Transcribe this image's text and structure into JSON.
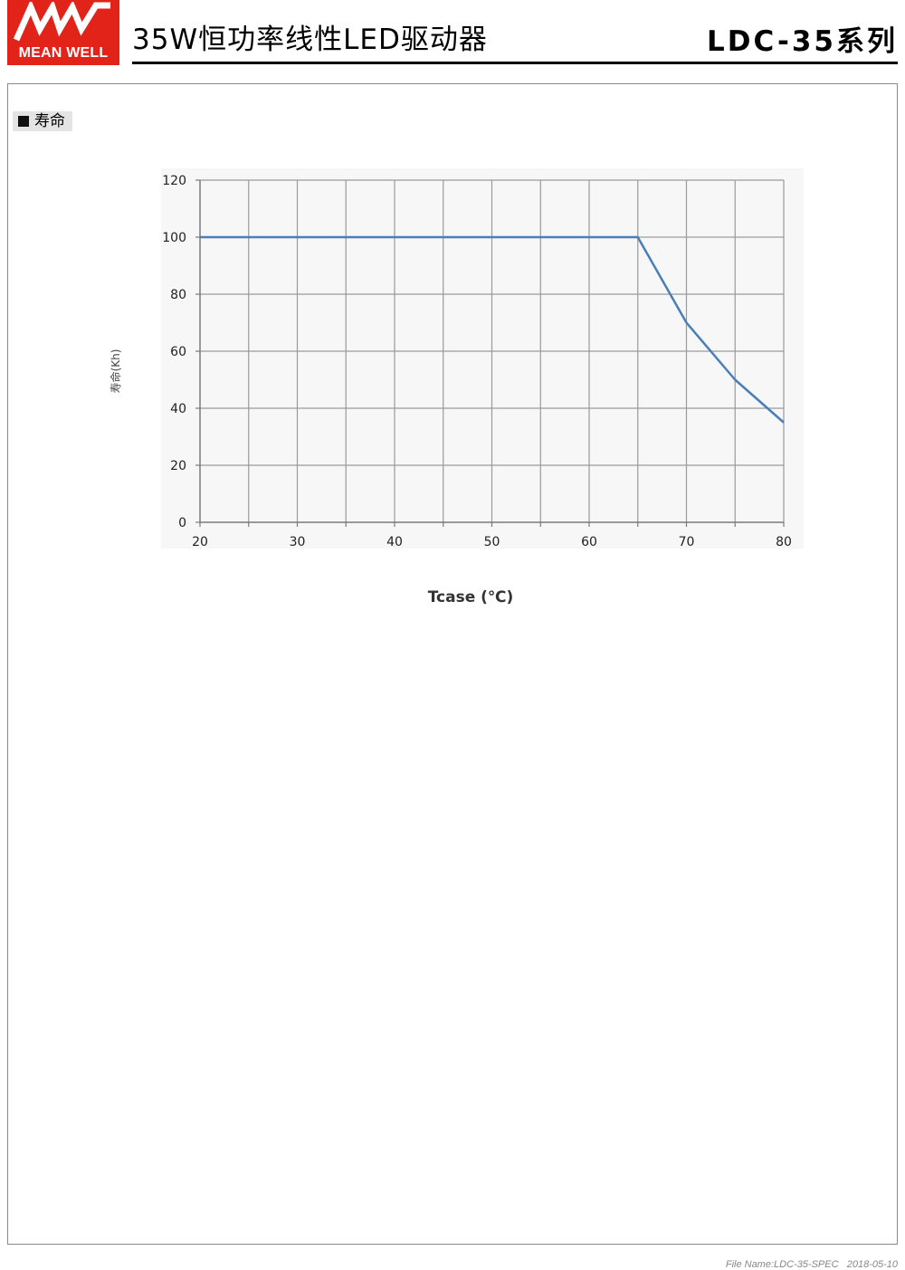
{
  "header": {
    "logo_text": "MEAN WELL",
    "doc_title": "35W恒功率线性LED驱动器",
    "series": "LDC-35系列",
    "brand_color": "#e2231a"
  },
  "section": {
    "label": "寿命"
  },
  "chart_data": {
    "type": "line",
    "title": "",
    "xlabel": "Tcase (℃)",
    "ylabel": "寿命(Kh)",
    "xlim": [
      20,
      80
    ],
    "ylim": [
      0,
      120
    ],
    "x_ticks": [
      20,
      30,
      40,
      50,
      60,
      70,
      80
    ],
    "y_ticks": [
      0,
      20,
      40,
      60,
      80,
      100,
      120
    ],
    "grid": true,
    "series": [
      {
        "color": "#4a7ebb",
        "points": [
          [
            20,
            100
          ],
          [
            65,
            100
          ],
          [
            70,
            70
          ],
          [
            75,
            50
          ],
          [
            80,
            35
          ]
        ]
      }
    ]
  },
  "footer": {
    "file_name": "File Name:LDC-35-SPEC",
    "date": "2018-05-10"
  }
}
